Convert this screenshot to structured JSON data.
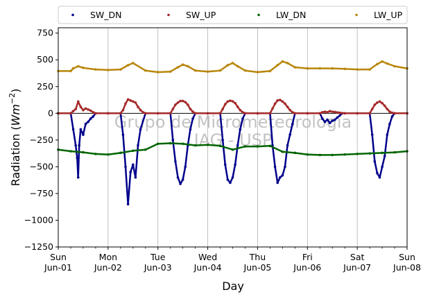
{
  "chart_data": {
    "type": "scatter",
    "title": "",
    "xlabel": "Day",
    "ylabel_main": "Radiation (",
    "ylabel_unit": "Wm",
    "ylabel_exp": "−2",
    "ylabel_close": ")",
    "ylim": [
      -1250,
      800
    ],
    "yticks": [
      750,
      500,
      250,
      0,
      -250,
      -500,
      -750,
      -1000,
      -1250
    ],
    "ytick_labels": [
      "750",
      "500",
      "250",
      "0",
      "−250",
      "−500",
      "−750",
      "−1000",
      "−1250"
    ],
    "xlim_days": [
      0,
      7
    ],
    "xticks": [
      {
        "day": 0,
        "dow": "Sun",
        "date": "Jun-01"
      },
      {
        "day": 1,
        "dow": "Mon",
        "date": "Jun-02"
      },
      {
        "day": 2,
        "dow": "Tue",
        "date": "Jun-03"
      },
      {
        "day": 3,
        "dow": "Wed",
        "date": "Jun-04"
      },
      {
        "day": 4,
        "dow": "Thu",
        "date": "Jun-05"
      },
      {
        "day": 5,
        "dow": "Fri",
        "date": "Jun-06"
      },
      {
        "day": 6,
        "dow": "Sat",
        "date": "Jun-07"
      },
      {
        "day": 7,
        "dow": "Sun",
        "date": "Jun-08"
      }
    ],
    "grid": "vertical",
    "legend_placement": "top",
    "watermark_line1": "Grupo de Micrometeorologia",
    "watermark_line2": "IAG - USP",
    "series": [
      {
        "name": "SW_DN",
        "color": "#00008b",
        "x": [
          0.0,
          0.25,
          0.3,
          0.35,
          0.38,
          0.4,
          0.42,
          0.45,
          0.5,
          0.55,
          0.6,
          0.65,
          0.7,
          0.75,
          1.0,
          1.25,
          1.3,
          1.35,
          1.4,
          1.45,
          1.5,
          1.55,
          1.6,
          1.65,
          1.75,
          2.0,
          2.25,
          2.3,
          2.35,
          2.4,
          2.45,
          2.5,
          2.55,
          2.6,
          2.65,
          2.7,
          2.75,
          3.0,
          3.25,
          3.3,
          3.35,
          3.4,
          3.45,
          3.5,
          3.55,
          3.6,
          3.65,
          3.7,
          3.75,
          4.0,
          4.25,
          4.3,
          4.35,
          4.4,
          4.45,
          4.5,
          4.55,
          4.6,
          4.65,
          4.7,
          4.75,
          5.0,
          5.25,
          5.3,
          5.35,
          5.4,
          5.45,
          5.5,
          5.55,
          5.6,
          5.65,
          5.7,
          5.75,
          6.0,
          6.25,
          6.3,
          6.35,
          6.4,
          6.45,
          6.5,
          6.55,
          6.6,
          6.65,
          6.7,
          6.75,
          7.0
        ],
        "values": [
          0,
          0,
          -150,
          -300,
          -420,
          -600,
          -300,
          -150,
          -200,
          -100,
          -80,
          -50,
          -30,
          0,
          0,
          0,
          -200,
          -500,
          -850,
          -550,
          -480,
          -600,
          -300,
          -150,
          0,
          0,
          0,
          -250,
          -450,
          -600,
          -660,
          -620,
          -500,
          -300,
          -150,
          -50,
          0,
          0,
          0,
          -250,
          -480,
          -620,
          -650,
          -600,
          -480,
          -300,
          -150,
          -50,
          0,
          0,
          0,
          -300,
          -500,
          -650,
          -600,
          -580,
          -500,
          -300,
          -200,
          -100,
          0,
          0,
          0,
          -50,
          -80,
          -60,
          -90,
          -70,
          -60,
          -40,
          -20,
          0,
          0,
          0,
          0,
          -200,
          -450,
          -560,
          -600,
          -500,
          -400,
          -200,
          -100,
          -30,
          0,
          0
        ]
      },
      {
        "name": "SW_UP",
        "color": "#a52a2a",
        "x": [
          0.0,
          0.25,
          0.3,
          0.35,
          0.4,
          0.45,
          0.5,
          0.55,
          0.6,
          0.65,
          0.7,
          0.75,
          1.0,
          1.25,
          1.3,
          1.35,
          1.4,
          1.45,
          1.5,
          1.55,
          1.6,
          1.65,
          1.7,
          1.75,
          2.0,
          2.25,
          2.3,
          2.35,
          2.4,
          2.45,
          2.5,
          2.55,
          2.6,
          2.65,
          2.7,
          2.75,
          3.0,
          3.25,
          3.3,
          3.35,
          3.4,
          3.45,
          3.5,
          3.55,
          3.6,
          3.65,
          3.7,
          3.75,
          4.0,
          4.25,
          4.3,
          4.35,
          4.4,
          4.45,
          4.5,
          4.55,
          4.6,
          4.65,
          4.7,
          4.75,
          5.0,
          5.25,
          5.3,
          5.35,
          5.4,
          5.45,
          5.5,
          5.55,
          5.6,
          5.65,
          5.7,
          5.75,
          6.0,
          6.25,
          6.3,
          6.35,
          6.4,
          6.45,
          6.5,
          6.55,
          6.6,
          6.65,
          6.7,
          6.75,
          7.0
        ],
        "values": [
          0,
          0,
          20,
          40,
          110,
          60,
          30,
          45,
          35,
          25,
          10,
          0,
          0,
          0,
          30,
          90,
          130,
          120,
          110,
          100,
          60,
          30,
          10,
          0,
          0,
          0,
          40,
          80,
          100,
          115,
          115,
          105,
          80,
          40,
          15,
          0,
          0,
          0,
          40,
          85,
          110,
          118,
          112,
          95,
          60,
          30,
          10,
          0,
          0,
          0,
          45,
          90,
          120,
          125,
          110,
          90,
          60,
          30,
          10,
          0,
          0,
          0,
          10,
          15,
          10,
          20,
          15,
          12,
          8,
          5,
          2,
          0,
          0,
          0,
          40,
          80,
          100,
          110,
          95,
          70,
          40,
          15,
          5,
          0,
          0
        ]
      },
      {
        "name": "LW_DN",
        "color": "#006400",
        "x": [
          0.0,
          0.25,
          0.5,
          0.75,
          1.0,
          1.25,
          1.5,
          1.75,
          2.0,
          2.25,
          2.5,
          2.75,
          3.0,
          3.25,
          3.5,
          3.75,
          4.0,
          4.25,
          4.5,
          4.75,
          5.0,
          5.25,
          5.5,
          5.75,
          6.0,
          6.25,
          6.5,
          6.75,
          7.0
        ],
        "values": [
          -340,
          -355,
          -365,
          -380,
          -385,
          -370,
          -350,
          -340,
          -285,
          -280,
          -285,
          -300,
          -295,
          -305,
          -340,
          -310,
          -310,
          -305,
          -360,
          -370,
          -385,
          -390,
          -390,
          -385,
          -380,
          -375,
          -370,
          -365,
          -355
        ]
      },
      {
        "name": "LW_UP",
        "color": "#b8860b",
        "x": [
          0.0,
          0.25,
          0.3,
          0.4,
          0.5,
          0.75,
          1.0,
          1.25,
          1.4,
          1.5,
          1.75,
          2.0,
          2.25,
          2.4,
          2.5,
          2.6,
          2.75,
          3.0,
          3.25,
          3.4,
          3.5,
          3.6,
          3.75,
          4.0,
          4.25,
          4.4,
          4.5,
          4.6,
          4.75,
          5.0,
          5.25,
          5.5,
          5.75,
          6.0,
          6.25,
          6.4,
          6.5,
          6.6,
          6.75,
          7.0
        ],
        "values": [
          395,
          395,
          420,
          440,
          425,
          410,
          405,
          410,
          450,
          470,
          400,
          385,
          390,
          430,
          455,
          440,
          400,
          390,
          400,
          450,
          470,
          440,
          400,
          385,
          395,
          450,
          485,
          470,
          430,
          420,
          420,
          420,
          415,
          410,
          410,
          460,
          485,
          465,
          440,
          420
        ]
      }
    ]
  }
}
